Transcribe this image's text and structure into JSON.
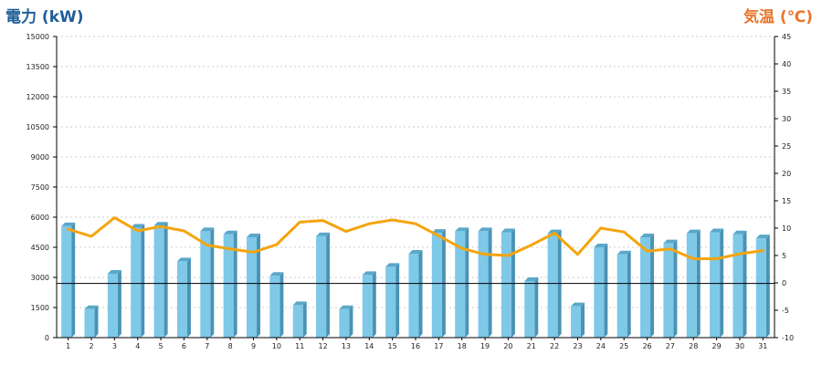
{
  "chart_data": {
    "type": "bar+line",
    "categories": [
      "1",
      "2",
      "3",
      "4",
      "5",
      "6",
      "7",
      "8",
      "9",
      "10",
      "11",
      "12",
      "13",
      "14",
      "15",
      "16",
      "17",
      "18",
      "19",
      "20",
      "21",
      "22",
      "23",
      "24",
      "25",
      "26",
      "27",
      "28",
      "29",
      "30",
      "31"
    ],
    "series": [
      {
        "axis": "left",
        "kind": "bar",
        "color": "#7ec8e8",
        "values": [
          5550,
          1420,
          3180,
          5480,
          5580,
          3800,
          5300,
          5150,
          5000,
          3080,
          1620,
          5050,
          1420,
          3120,
          3530,
          4180,
          5220,
          5300,
          5300,
          5250,
          2820,
          5200,
          1560,
          4500,
          4150,
          5000,
          4700,
          5200,
          5250,
          5150,
          4950
        ]
      },
      {
        "axis": "right",
        "kind": "line",
        "color": "#f5a40d",
        "values": [
          9.8,
          8.5,
          11.9,
          9.5,
          10.3,
          9.5,
          6.9,
          6.2,
          5.6,
          7.0,
          11.1,
          11.4,
          9.4,
          10.8,
          11.5,
          10.8,
          8.6,
          6.3,
          5.2,
          5.0,
          6.9,
          9.1,
          5.2,
          10.0,
          9.3,
          5.8,
          6.2,
          4.4,
          4.4,
          5.3,
          5.9
        ]
      }
    ],
    "reference_line": {
      "axis": "left",
      "value": 2700,
      "color": "#000000"
    },
    "left_axis": {
      "label": "電力 (kW)",
      "ylim": [
        0,
        15000
      ],
      "ticks": [
        "0",
        "1500",
        "3000",
        "4500",
        "6000",
        "7500",
        "9000",
        "10500",
        "12000",
        "13500",
        "15000"
      ],
      "color": "#1f5e99"
    },
    "right_axis": {
      "label": "気温 (℃)",
      "ylim": [
        -10,
        45
      ],
      "ticks": [
        "-10",
        "-5",
        "0",
        "5",
        "10",
        "15",
        "20",
        "25",
        "30",
        "35",
        "40",
        "45"
      ],
      "color": "#e8762c"
    },
    "grid": "horizontal dotted",
    "xlabel": "",
    "title": ""
  }
}
